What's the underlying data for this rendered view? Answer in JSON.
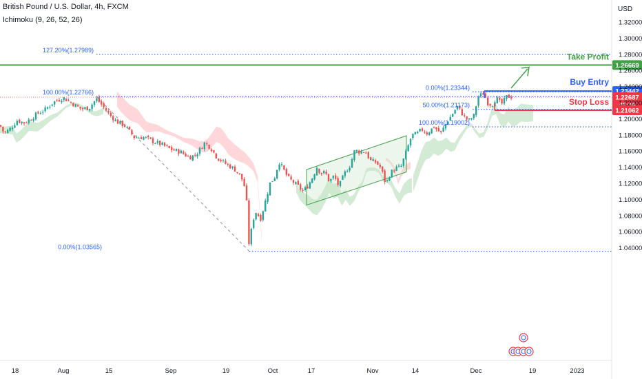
{
  "header": {
    "title": "British Pound / U.S. Dollar, 4h, FXCM",
    "indicator": "Ichimoku (9, 26, 52, 26)"
  },
  "colors": {
    "up": "#26a69a",
    "down": "#ef5350",
    "fib": "#2962ff",
    "take_profit": "#43a047",
    "buy_entry": "#2962ff",
    "stop_loss": "#f23645",
    "cloud_bull": "#c8e6c9",
    "cloud_bear": "#ffcdd2",
    "price_line": "#f23645"
  },
  "chart_data": {
    "type": "candlestick",
    "symbol": "GBPUSD",
    "timeframe": "4h",
    "currency": "USD",
    "y_ticks": [
      "1.32000",
      "1.30000",
      "1.28000",
      "1.26000",
      "1.24000",
      "1.22000",
      "1.20000",
      "1.18000",
      "1.16000",
      "1.14000",
      "1.12000",
      "1.10000",
      "1.08000",
      "1.06000",
      "1.04000"
    ],
    "ylim": [
      1.03,
      1.335
    ],
    "x_ticks": [
      "18",
      "Aug",
      "15",
      "Sep",
      "19",
      "Oct",
      "17",
      "Nov",
      "14",
      "Dec",
      "19",
      "2023"
    ],
    "path": [
      {
        "x": 0,
        "y": 1.192
      },
      {
        "x": 6,
        "y": 1.182
      },
      {
        "x": 14,
        "y": 1.187
      },
      {
        "x": 25,
        "y": 1.198
      },
      {
        "x": 35,
        "y": 1.195
      },
      {
        "x": 45,
        "y": 1.2
      },
      {
        "x": 55,
        "y": 1.207
      },
      {
        "x": 65,
        "y": 1.211
      },
      {
        "x": 78,
        "y": 1.221
      },
      {
        "x": 92,
        "y": 1.226
      },
      {
        "x": 105,
        "y": 1.219
      },
      {
        "x": 118,
        "y": 1.212
      },
      {
        "x": 130,
        "y": 1.214
      },
      {
        "x": 140,
        "y": 1.225
      },
      {
        "x": 148,
        "y": 1.217
      },
      {
        "x": 158,
        "y": 1.206
      },
      {
        "x": 170,
        "y": 1.196
      },
      {
        "x": 182,
        "y": 1.191
      },
      {
        "x": 195,
        "y": 1.177
      },
      {
        "x": 210,
        "y": 1.177
      },
      {
        "x": 222,
        "y": 1.172
      },
      {
        "x": 235,
        "y": 1.168
      },
      {
        "x": 248,
        "y": 1.162
      },
      {
        "x": 262,
        "y": 1.159
      },
      {
        "x": 275,
        "y": 1.152
      },
      {
        "x": 285,
        "y": 1.156
      },
      {
        "x": 297,
        "y": 1.17
      },
      {
        "x": 305,
        "y": 1.165
      },
      {
        "x": 315,
        "y": 1.152
      },
      {
        "x": 328,
        "y": 1.144
      },
      {
        "x": 340,
        "y": 1.138
      },
      {
        "x": 350,
        "y": 1.128
      },
      {
        "x": 357,
        "y": 1.111
      },
      {
        "x": 362,
        "y": 1.037
      },
      {
        "x": 366,
        "y": 1.072
      },
      {
        "x": 372,
        "y": 1.085
      },
      {
        "x": 378,
        "y": 1.075
      },
      {
        "x": 385,
        "y": 1.097
      },
      {
        "x": 392,
        "y": 1.12
      },
      {
        "x": 399,
        "y": 1.128
      },
      {
        "x": 405,
        "y": 1.147
      },
      {
        "x": 411,
        "y": 1.138
      },
      {
        "x": 418,
        "y": 1.127
      },
      {
        "x": 425,
        "y": 1.122
      },
      {
        "x": 432,
        "y": 1.117
      },
      {
        "x": 440,
        "y": 1.11
      },
      {
        "x": 447,
        "y": 1.117
      },
      {
        "x": 454,
        "y": 1.128
      },
      {
        "x": 460,
        "y": 1.14
      },
      {
        "x": 466,
        "y": 1.132
      },
      {
        "x": 472,
        "y": 1.134
      },
      {
        "x": 478,
        "y": 1.122
      },
      {
        "x": 485,
        "y": 1.129
      },
      {
        "x": 492,
        "y": 1.116
      },
      {
        "x": 500,
        "y": 1.132
      },
      {
        "x": 508,
        "y": 1.142
      },
      {
        "x": 515,
        "y": 1.161
      },
      {
        "x": 522,
        "y": 1.159
      },
      {
        "x": 530,
        "y": 1.16
      },
      {
        "x": 538,
        "y": 1.148
      },
      {
        "x": 546,
        "y": 1.146
      },
      {
        "x": 553,
        "y": 1.139
      },
      {
        "x": 560,
        "y": 1.119
      },
      {
        "x": 567,
        "y": 1.133
      },
      {
        "x": 575,
        "y": 1.139
      },
      {
        "x": 582,
        "y": 1.14
      },
      {
        "x": 590,
        "y": 1.16
      },
      {
        "x": 598,
        "y": 1.18
      },
      {
        "x": 605,
        "y": 1.181
      },
      {
        "x": 612,
        "y": 1.187
      },
      {
        "x": 620,
        "y": 1.182
      },
      {
        "x": 630,
        "y": 1.19
      },
      {
        "x": 640,
        "y": 1.182
      },
      {
        "x": 648,
        "y": 1.195
      },
      {
        "x": 656,
        "y": 1.205
      },
      {
        "x": 664,
        "y": 1.215
      },
      {
        "x": 672,
        "y": 1.205
      },
      {
        "x": 680,
        "y": 1.197
      },
      {
        "x": 688,
        "y": 1.204
      },
      {
        "x": 694,
        "y": 1.227
      },
      {
        "x": 702,
        "y": 1.232
      },
      {
        "x": 708,
        "y": 1.22
      },
      {
        "x": 714,
        "y": 1.217
      },
      {
        "x": 720,
        "y": 1.226
      },
      {
        "x": 728,
        "y": 1.218
      },
      {
        "x": 736,
        "y": 1.228
      },
      {
        "x": 744,
        "y": 1.227
      }
    ],
    "fib_levels": [
      {
        "label": "127.20%(1.27989)",
        "value": 1.27989
      },
      {
        "label": "100.00%(1.22766)",
        "value": 1.22766
      },
      {
        "label": "0.00%(1.03565)",
        "value": 1.03565
      },
      {
        "label": "0.00%(1.23344)",
        "value": 1.23344
      },
      {
        "label": "50.00%(1.21173)",
        "value": 1.21173
      },
      {
        "label": "100.00%(1.19002)",
        "value": 1.19002
      }
    ],
    "trade_levels": {
      "take_profit": {
        "label": "Take Profit",
        "value": "1.26669"
      },
      "buy_entry": {
        "label": "Buy Entry",
        "value": "1.23442"
      },
      "stop_loss": {
        "label": "Stop Loss",
        "value": "1.21062"
      },
      "last_price": {
        "value": "1.22687",
        "countdown": "43:16"
      }
    }
  }
}
